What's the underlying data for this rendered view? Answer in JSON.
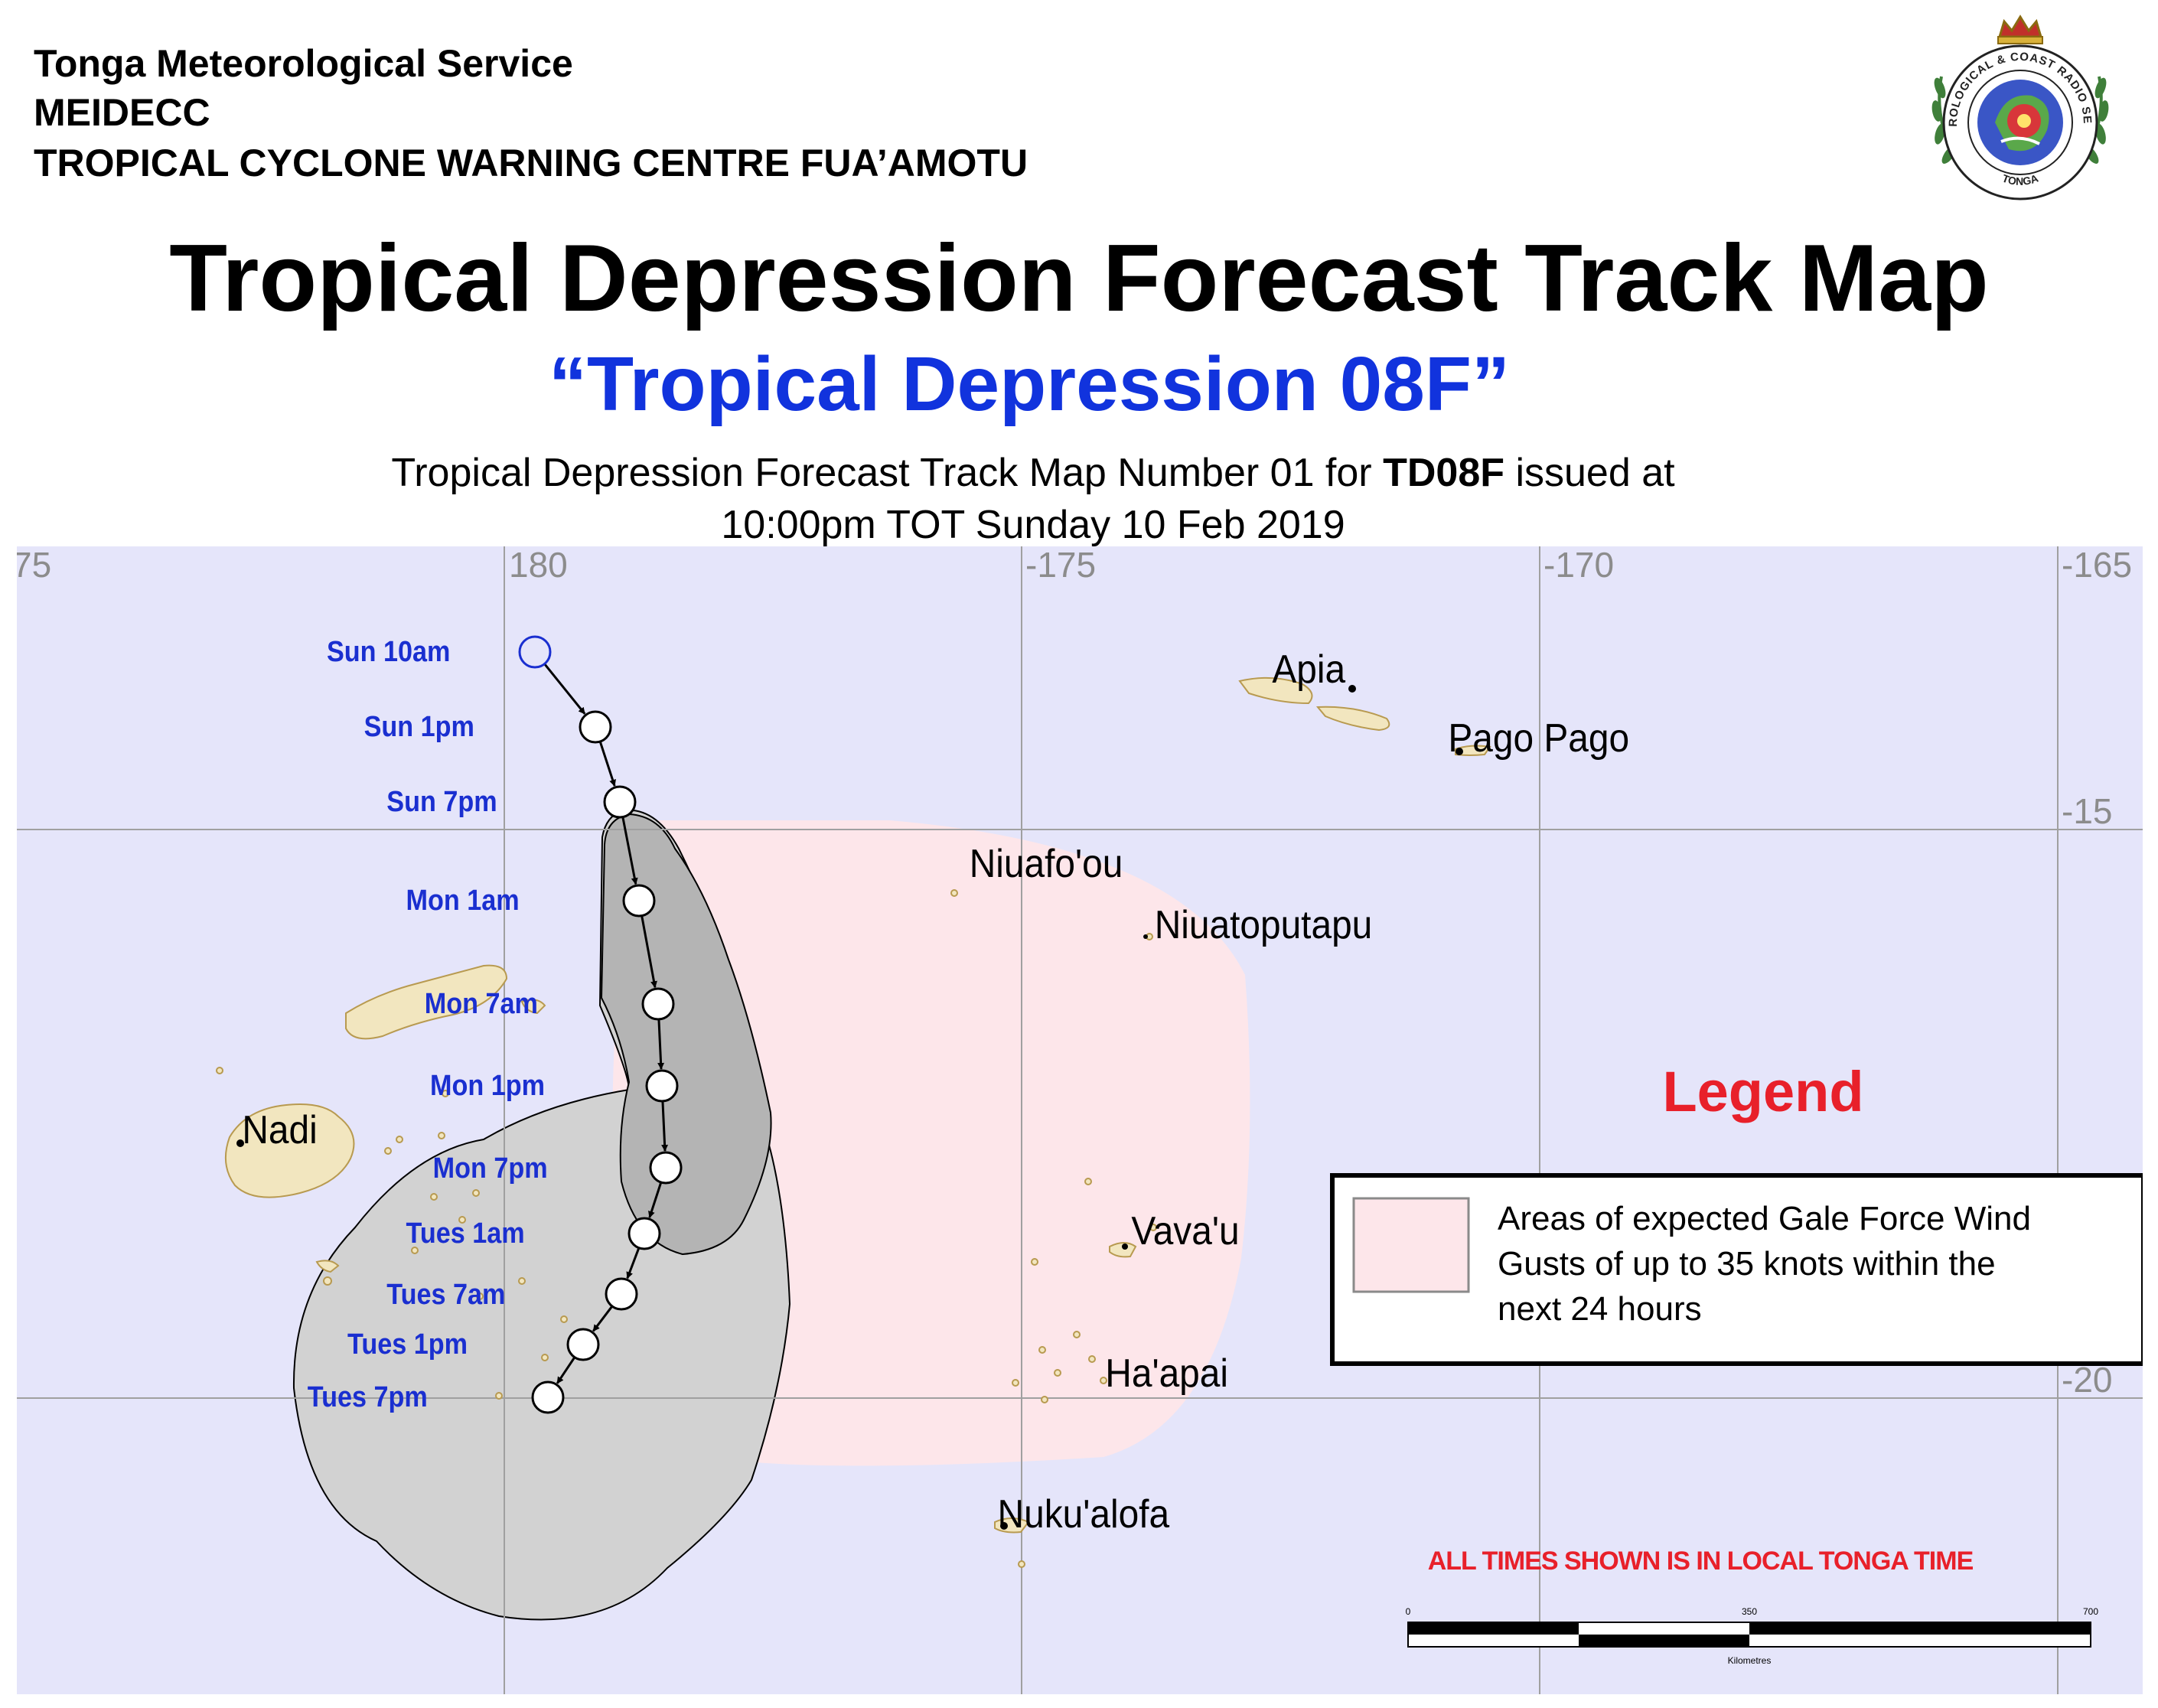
{
  "header": {
    "org_line1": "Tonga Meteorological Service",
    "org_line2": "MEIDECC",
    "org_line3": "TROPICAL CYCLONE WARNING CENTRE FUA’AMOTU",
    "title": "Tropical Depression Forecast Track Map",
    "subtitle": "“Tropical Depression 08F”",
    "issue_prefix": "Tropical Depression Forecast Track Map Number 01 for ",
    "issue_code": "TD08F",
    "issue_suffix": " issued at",
    "issue_time": "10:00pm TOT Sunday 10 Feb 2019"
  },
  "logo": {
    "ring_text_top": "METEOROLOGICAL & COAST RADIO SERVICES",
    "ring_text_bottom": "TONGA"
  },
  "map": {
    "background_color": "#e5e5fa",
    "grid": {
      "longitudes": [
        "75",
        "180",
        "-175",
        "-170",
        "-165"
      ],
      "latitudes": [
        "-15",
        "-20"
      ]
    },
    "places": [
      "Apia",
      "Pago Pago",
      "Niuafo'ou",
      "Niuatoputapu",
      "Nadi",
      "Vava'u",
      "Ha'apai",
      "Nuku'alofa"
    ],
    "track_points": [
      {
        "label": "Sun 10am",
        "status": "analysis"
      },
      {
        "label": "Sun 1pm",
        "status": "forecast"
      },
      {
        "label": "Sun 7pm",
        "status": "forecast"
      },
      {
        "label": "Mon 1am",
        "status": "forecast"
      },
      {
        "label": "Mon 7am",
        "status": "forecast"
      },
      {
        "label": "Mon 1pm",
        "status": "forecast"
      },
      {
        "label": "Mon 7pm",
        "status": "forecast"
      },
      {
        "label": "Tues 1am",
        "status": "forecast"
      },
      {
        "label": "Tues 7am",
        "status": "forecast"
      },
      {
        "label": "Tues 1pm",
        "status": "forecast"
      },
      {
        "label": "Tues 7pm",
        "status": "forecast"
      }
    ],
    "colors": {
      "gale_area": "#fde6ea",
      "uncertainty_cone": "#d2d2d2",
      "cone_core": "#b4b4b4",
      "track_label": "#1a2fd0",
      "land": "#f2e6bf",
      "legend_title": "#e8202a",
      "notice": "#e8202a"
    },
    "legend": {
      "title": "Legend",
      "line1": "Areas of expected Gale Force Wind",
      "line2": "Gusts of up to 35 knots within the",
      "line3": "next 24 hours"
    },
    "notice": "ALL TIMES SHOWN IS IN LOCAL TONGA TIME",
    "scale_bar": {
      "ticks": [
        "0",
        "350",
        "700"
      ],
      "unit": "Kilometres"
    }
  }
}
